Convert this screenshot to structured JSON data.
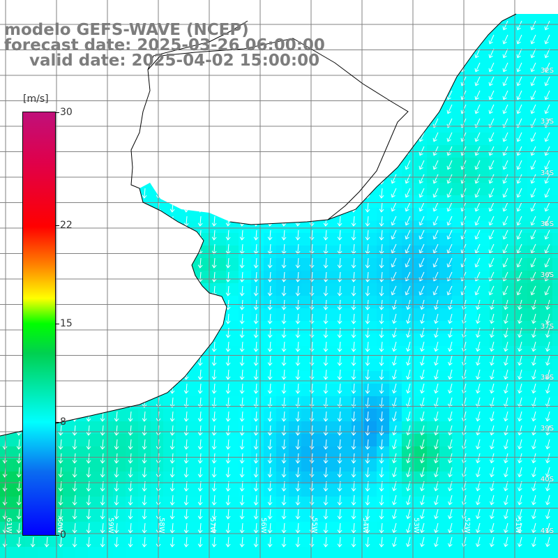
{
  "title": {
    "line1": "modelo GEFS-WAVE (NCEP)",
    "line2": "forecast date: 2025-03-26 06:00:00",
    "line3": "valid date: 2025-04-02 15:00:00"
  },
  "colorbar": {
    "unit": "[m/s]",
    "ticks": [
      "30",
      "22",
      "15",
      "8",
      "0"
    ],
    "tick_values": [
      30,
      22,
      15,
      8,
      0
    ],
    "range": [
      0,
      30
    ]
  },
  "latitude_labels": [
    "32S",
    "33S",
    "34S",
    "35S",
    "36S",
    "37S",
    "38S",
    "39S",
    "40S",
    "41S"
  ],
  "longitude_labels": [
    "61W",
    "60W",
    "59W",
    "58W",
    "57W",
    "56W",
    "55W",
    "54W",
    "53W",
    "52W",
    "51W"
  ],
  "colors": {
    "land": "#ffffff",
    "coast": "#000000",
    "grid": "#808080",
    "arrows": "#ffffff",
    "title_text": "#7d7d7d"
  },
  "field": "wind speed and direction over ocean, predominant arrows pointing south-southwest"
}
